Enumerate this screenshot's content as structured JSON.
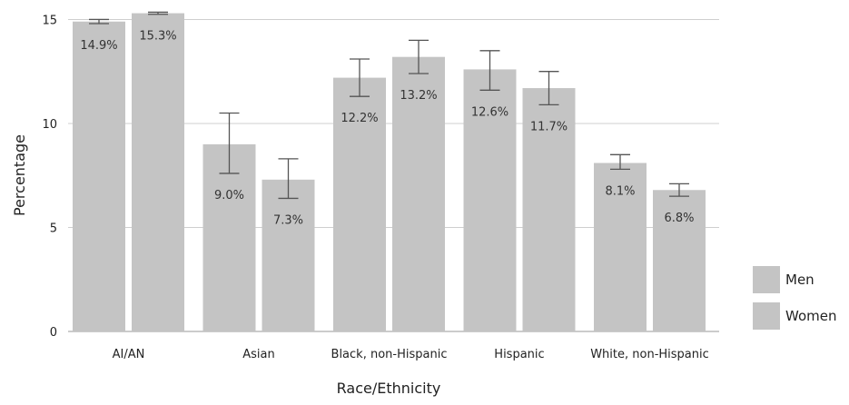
{
  "chart_data": {
    "type": "bar",
    "title": "",
    "xlabel": "Race/Ethnicity",
    "ylabel": "Percentage",
    "ylim": [
      0,
      15.5
    ],
    "yticks": [
      "0",
      "5",
      "10",
      "15"
    ],
    "grid": true,
    "legend_position": "bottom-right",
    "categories": [
      "AI/AN",
      "Asian",
      "Black, non-Hispanic",
      "Hispanic",
      "White, non-Hispanic"
    ],
    "series": [
      {
        "name": "Men",
        "color": "#c4c4c4",
        "values": [
          14.9,
          9.0,
          12.2,
          12.6,
          8.1
        ],
        "labels": [
          "14.9%",
          "9.0%",
          "12.2%",
          "12.6%",
          "8.1%"
        ],
        "error_low": [
          14.8,
          7.6,
          11.3,
          11.6,
          7.8
        ],
        "error_high": [
          15.0,
          10.5,
          13.1,
          13.5,
          8.5
        ]
      },
      {
        "name": "Women",
        "color": "#c4c4c4",
        "values": [
          15.3,
          7.3,
          13.2,
          11.7,
          6.8
        ],
        "labels": [
          "15.3%",
          "7.3%",
          "13.2%",
          "11.7%",
          "6.8%"
        ],
        "error_low": [
          15.25,
          6.4,
          12.4,
          10.9,
          6.5
        ],
        "error_high": [
          15.35,
          8.3,
          14.0,
          12.5,
          7.1
        ]
      }
    ]
  }
}
